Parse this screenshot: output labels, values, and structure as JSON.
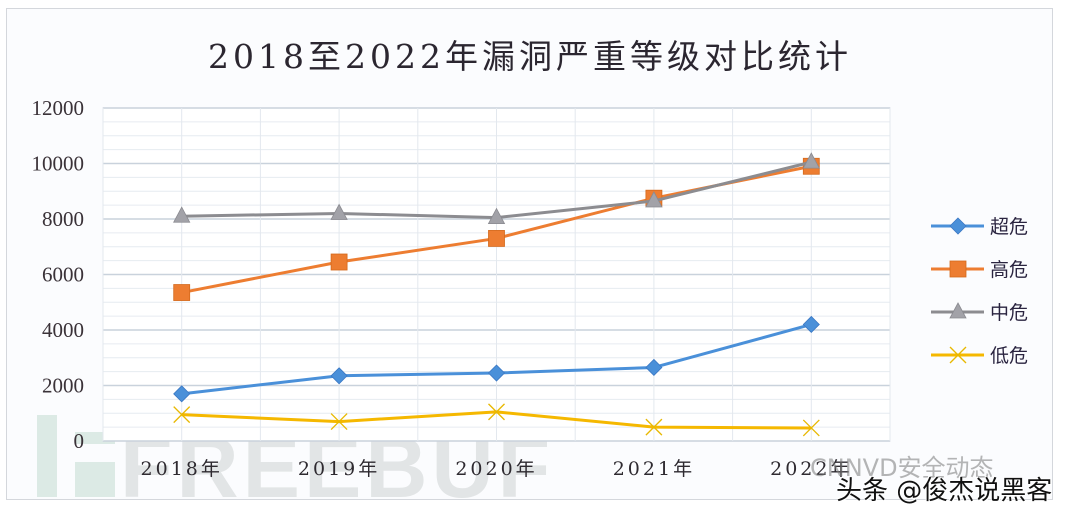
{
  "chart_data": {
    "type": "line",
    "title": "2018至2022年漏洞严重等级对比统计",
    "xlabel": "",
    "ylabel": "",
    "categories": [
      "2018年",
      "2019年",
      "2020年",
      "2021年",
      "2022年"
    ],
    "ylim": [
      0,
      12000
    ],
    "yticks": [
      "0",
      "2000",
      "4000",
      "6000",
      "8000",
      "10000",
      "12000"
    ],
    "grid": true,
    "legend_position": "right",
    "series": [
      {
        "name": "超危",
        "color": "#4a90d9",
        "marker": "diamond",
        "values": [
          1700,
          2350,
          2450,
          2650,
          4200
        ]
      },
      {
        "name": "高危",
        "color": "#ed7d31",
        "marker": "square",
        "values": [
          5350,
          6450,
          7300,
          8750,
          9900
        ]
      },
      {
        "name": "中危",
        "color": "#8c8c90",
        "marker": "triangle",
        "values": [
          8100,
          8200,
          8050,
          8650,
          10050
        ]
      },
      {
        "name": "低危",
        "color": "#f5b800",
        "marker": "x",
        "values": [
          950,
          700,
          1050,
          500,
          470
        ]
      }
    ]
  },
  "watermarks": {
    "freebuf": "FREEBUF",
    "cnnvd": "CNNVD安全动态",
    "toutiao": "头条 @俊杰说黑客"
  }
}
